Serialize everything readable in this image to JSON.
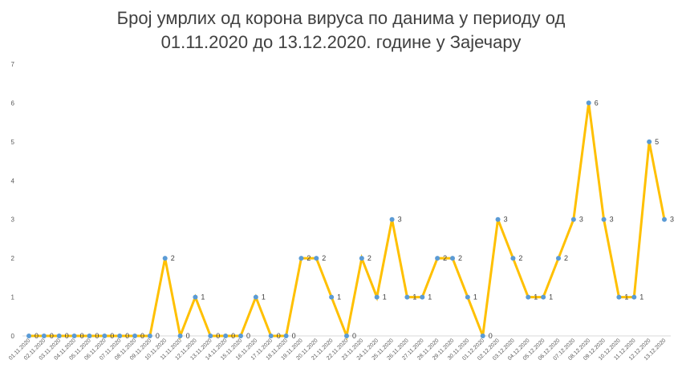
{
  "chart_data": {
    "type": "line",
    "title_lines": [
      "Број умрлих од корона вируса по данима у периоду од",
      "01.11.2020 до 13.12.2020. године у Зајечару"
    ],
    "xlabel": "",
    "ylabel": "",
    "ylim": [
      0,
      7
    ],
    "yticks": [
      0,
      1,
      2,
      3,
      4,
      5,
      6,
      7
    ],
    "grid": false,
    "legend": "none",
    "line_color": "#FFC000",
    "marker_color": "#5B9BD5",
    "categories": [
      "01.11.2020",
      "02.11.2020",
      "03.11.2020",
      "04.11.2020",
      "05.11.2020",
      "06.11.2020",
      "07.11.2020",
      "08.11.2020",
      "09.11.2020",
      "10.11.2020",
      "11.11.2020",
      "12.11.2020",
      "13.11.2020",
      "14.11.2020",
      "15.11.2020",
      "16.11.2020",
      "17.11.2020",
      "18.11.2020",
      "19.11.2020",
      "20.11.2020",
      "21.11.2020",
      "22.11.2020",
      "23.11.2020",
      "24.11.2020",
      "25.11.2020",
      "26.11.2020",
      "27.11.2020",
      "28.11.2020",
      "29.11.2020",
      "30.11.2020",
      "01.12.2020",
      "02.12.2020",
      "03.12.2020",
      "04.12.2020",
      "05.12.2020",
      "06.12.2020",
      "07.12.2020",
      "08.12.2020",
      "09.12.2020",
      "10.12.2020",
      "11.12.2020",
      "12.12.2020",
      "13.12.2020"
    ],
    "values": [
      0,
      0,
      0,
      0,
      0,
      0,
      0,
      0,
      0,
      2,
      0,
      1,
      0,
      0,
      0,
      1,
      0,
      0,
      2,
      2,
      1,
      0,
      2,
      1,
      3,
      1,
      1,
      2,
      2,
      1,
      0,
      3,
      2,
      1,
      1,
      2,
      3,
      6,
      3,
      1,
      1,
      5,
      3
    ]
  }
}
